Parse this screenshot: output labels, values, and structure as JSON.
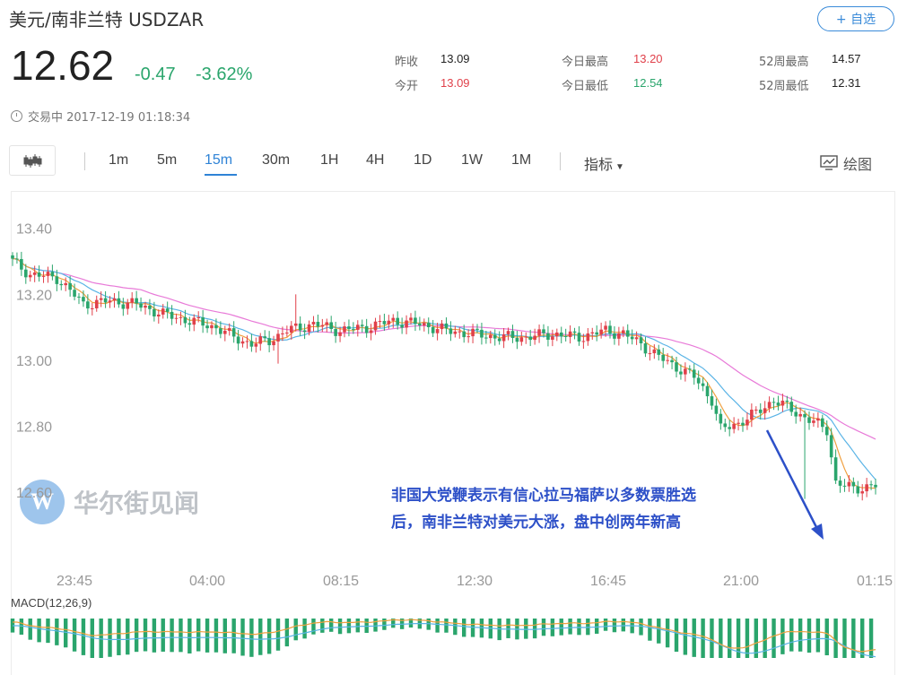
{
  "header": {
    "title": "美元/南非兰特  USDZAR",
    "watch_button": "+ 自选",
    "price": "12.62",
    "change": "-0.47",
    "change_pct": "-3.62%"
  },
  "stats": {
    "prev_close_label": "昨收",
    "prev_close": "13.09",
    "open_label": "今开",
    "open": "13.09",
    "day_high_label": "今日最高",
    "day_high": "13.20",
    "day_low_label": "今日最低",
    "day_low": "12.54",
    "w52_high_label": "52周最高",
    "w52_high": "14.57",
    "w52_low_label": "52周最低",
    "w52_low": "12.31"
  },
  "status": "交易中 2017-12-19 01:18:34",
  "toolbar": {
    "intervals": [
      "1m",
      "5m",
      "15m",
      "30m",
      "1H",
      "4H",
      "1D",
      "1W",
      "1M"
    ],
    "active_interval": "15m",
    "indicator_label": "指标",
    "draw_label": "绘图"
  },
  "annotation": {
    "line1": "非国大党鞭表示有信心拉马福萨以多数票胜选",
    "line2": "后，南非兰特对美元大涨，盘中创两年新高"
  },
  "watermark": {
    "text": "华尔街见闻",
    "logo": "W"
  },
  "colors": {
    "up": "#e0404a",
    "down": "#2aa56c",
    "ma1": "#f0a040",
    "ma2": "#5ab4e6",
    "ma3": "#e87ad8",
    "accent": "#2f83d6"
  },
  "chart_data": {
    "type": "candlestick",
    "y_ticks": [
      "13.40",
      "13.20",
      "13.00",
      "12.80",
      "12.60"
    ],
    "ylim": [
      12.53,
      13.44
    ],
    "x_ticks": [
      "23:45",
      "04:00",
      "08:15",
      "12:30",
      "16:45",
      "21:00",
      "01:15"
    ],
    "macd_label": "MACD(12,26,9)",
    "price_anchors": [
      [
        0,
        13.3
      ],
      [
        4,
        13.26
      ],
      [
        10,
        13.25
      ],
      [
        16,
        13.17
      ],
      [
        22,
        13.18
      ],
      [
        28,
        13.17
      ],
      [
        34,
        13.14
      ],
      [
        40,
        13.12
      ],
      [
        46,
        13.1
      ],
      [
        50,
        13.07
      ],
      [
        54,
        13.05
      ],
      [
        58,
        13.06
      ],
      [
        62,
        13.09
      ],
      [
        68,
        13.11
      ],
      [
        74,
        13.09
      ],
      [
        80,
        13.1
      ],
      [
        86,
        13.12
      ],
      [
        92,
        13.11
      ],
      [
        98,
        13.09
      ],
      [
        104,
        13.08
      ],
      [
        110,
        13.07
      ],
      [
        116,
        13.07
      ],
      [
        122,
        13.08
      ],
      [
        128,
        13.07
      ],
      [
        134,
        13.09
      ],
      [
        138,
        13.08
      ],
      [
        142,
        13.05
      ],
      [
        146,
        13.01
      ],
      [
        150,
        12.98
      ],
      [
        154,
        12.95
      ],
      [
        158,
        12.88
      ],
      [
        160,
        12.79
      ],
      [
        164,
        12.81
      ],
      [
        168,
        12.84
      ],
      [
        172,
        12.88
      ],
      [
        176,
        12.85
      ],
      [
        180,
        12.82
      ],
      [
        184,
        12.79
      ],
      [
        186,
        12.63
      ],
      [
        190,
        12.61
      ],
      [
        194,
        12.62
      ]
    ],
    "spikes": [
      {
        "i": 64,
        "high": 13.2
      },
      {
        "i": 60,
        "low": 12.99
      },
      {
        "i": 179,
        "low": 12.58
      },
      {
        "i": 186,
        "high": 12.73
      }
    ]
  }
}
